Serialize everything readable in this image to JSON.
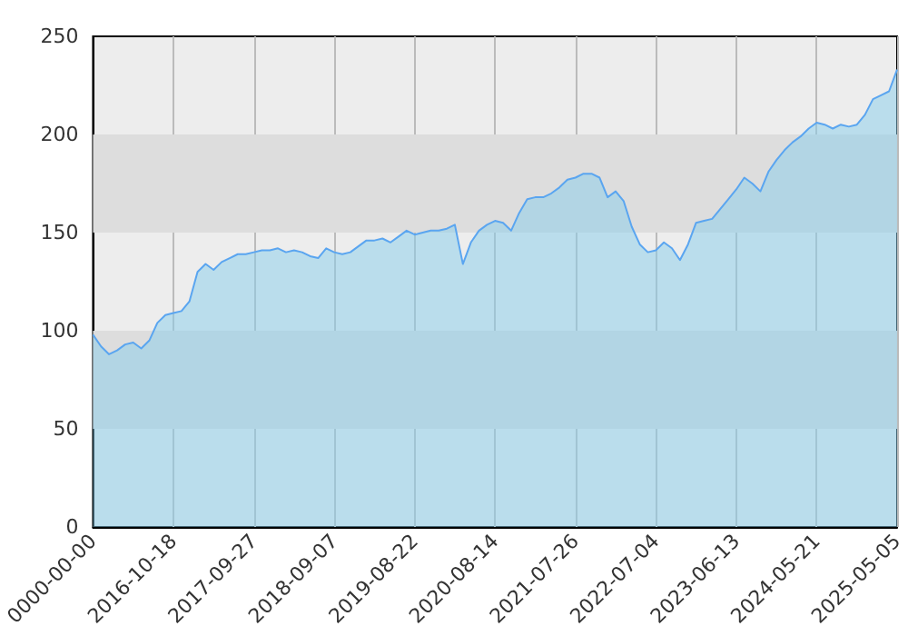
{
  "chart_data": {
    "type": "area",
    "categories": [
      "0000-00-00",
      null,
      null,
      null,
      null,
      null,
      null,
      null,
      null,
      null,
      "2016-10-18",
      null,
      null,
      null,
      null,
      null,
      null,
      null,
      null,
      null,
      "2017-09-27",
      null,
      null,
      null,
      null,
      null,
      null,
      null,
      null,
      null,
      "2018-09-07",
      null,
      null,
      null,
      null,
      null,
      null,
      null,
      null,
      null,
      "2019-08-22",
      null,
      null,
      null,
      null,
      null,
      null,
      null,
      null,
      null,
      "2020-08-14",
      null,
      null,
      null,
      null,
      null,
      null,
      null,
      null,
      null,
      "2021-07-26",
      null,
      null,
      null,
      null,
      null,
      null,
      null,
      null,
      null,
      "2022-07-04",
      null,
      null,
      null,
      null,
      null,
      null,
      null,
      null,
      null,
      "2023-06-13",
      null,
      null,
      null,
      null,
      null,
      null,
      null,
      null,
      null,
      "2024-05-21",
      null,
      null,
      null,
      null,
      null,
      null,
      null,
      null,
      null,
      "2025-05-05"
    ],
    "series": [
      {
        "color": "#5aa5f0",
        "values": [
          98,
          92,
          88,
          90,
          93,
          94,
          91,
          95,
          104,
          108,
          109,
          110,
          115,
          130,
          134,
          131,
          135,
          137,
          139,
          139,
          140,
          141,
          141,
          142,
          140,
          141,
          140,
          138,
          137,
          142,
          140,
          139,
          140,
          143,
          146,
          146,
          147,
          145,
          148,
          151,
          149,
          150,
          151,
          151,
          152,
          154,
          134,
          145,
          151,
          154,
          156,
          155,
          151,
          160,
          167,
          168,
          168,
          170,
          173,
          177,
          178,
          180,
          180,
          178,
          168,
          171,
          166,
          153,
          144,
          140,
          141,
          145,
          142,
          136,
          144,
          155,
          156,
          157,
          162,
          167,
          172,
          178,
          175,
          171,
          181,
          187,
          192,
          196,
          199,
          203,
          206,
          205,
          203,
          205,
          204,
          205,
          210,
          218,
          220,
          222,
          233
        ]
      }
    ],
    "ylim": [
      0,
      250
    ],
    "yticks": [
      0,
      50,
      100,
      150,
      200,
      250
    ],
    "bands": [
      {
        "axis": "y",
        "from": 50,
        "to": 100,
        "color": "#dddddd"
      },
      {
        "axis": "y",
        "from": 150,
        "to": 200,
        "color": "#dddddd"
      }
    ],
    "grid": "x",
    "marker": "none",
    "line_style": "solid"
  }
}
